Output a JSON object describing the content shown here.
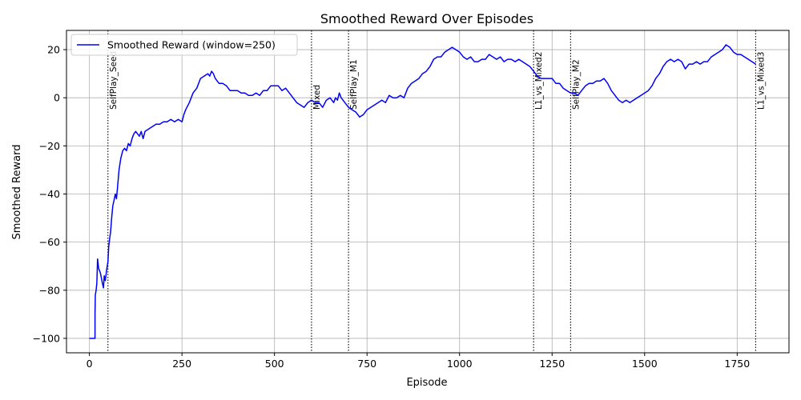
{
  "chart_data": {
    "type": "line",
    "title": "Smoothed Reward Over Episodes",
    "xlabel": "Episode",
    "ylabel": "Smoothed Reward",
    "xlim": [
      -62,
      1890
    ],
    "ylim": [
      -106,
      28
    ],
    "xticks": [
      0,
      250,
      500,
      750,
      1000,
      1250,
      1500,
      1750
    ],
    "yticks": [
      -100,
      -80,
      -60,
      -40,
      -20,
      0,
      20
    ],
    "xtick_labels": [
      "0",
      "250",
      "500",
      "750",
      "1000",
      "1250",
      "1500",
      "1750"
    ],
    "ytick_labels": [
      "−100",
      "−80",
      "−60",
      "−40",
      "−20",
      "0",
      "20"
    ],
    "grid": true,
    "legend_position": "top-left",
    "series": [
      {
        "name": "Smoothed Reward (window=250)",
        "color": "#0000ff",
        "points": [
          [
            0,
            -100
          ],
          [
            15,
            -100
          ],
          [
            15,
            -90
          ],
          [
            16,
            -82
          ],
          [
            18,
            -80
          ],
          [
            20,
            -77
          ],
          [
            22,
            -67
          ],
          [
            25,
            -71
          ],
          [
            30,
            -73
          ],
          [
            35,
            -77
          ],
          [
            38,
            -79
          ],
          [
            40,
            -74
          ],
          [
            43,
            -76
          ],
          [
            46,
            -72
          ],
          [
            50,
            -68
          ],
          [
            52,
            -62
          ],
          [
            55,
            -58
          ],
          [
            57,
            -56
          ],
          [
            60,
            -50
          ],
          [
            63,
            -45
          ],
          [
            66,
            -43
          ],
          [
            70,
            -40
          ],
          [
            73,
            -42
          ],
          [
            76,
            -37
          ],
          [
            80,
            -30
          ],
          [
            85,
            -25
          ],
          [
            90,
            -22
          ],
          [
            95,
            -21
          ],
          [
            100,
            -22
          ],
          [
            105,
            -19
          ],
          [
            110,
            -20
          ],
          [
            115,
            -17
          ],
          [
            120,
            -15
          ],
          [
            125,
            -14
          ],
          [
            130,
            -15
          ],
          [
            135,
            -16
          ],
          [
            140,
            -14
          ],
          [
            145,
            -17
          ],
          [
            150,
            -14
          ],
          [
            160,
            -13
          ],
          [
            170,
            -12
          ],
          [
            180,
            -11
          ],
          [
            190,
            -11
          ],
          [
            200,
            -10
          ],
          [
            210,
            -10
          ],
          [
            220,
            -9
          ],
          [
            230,
            -10
          ],
          [
            240,
            -9
          ],
          [
            250,
            -10
          ],
          [
            255,
            -7
          ],
          [
            260,
            -5
          ],
          [
            270,
            -2
          ],
          [
            280,
            2
          ],
          [
            290,
            4
          ],
          [
            300,
            8
          ],
          [
            310,
            9
          ],
          [
            320,
            10
          ],
          [
            325,
            9
          ],
          [
            330,
            11
          ],
          [
            335,
            10
          ],
          [
            340,
            8
          ],
          [
            345,
            7
          ],
          [
            350,
            6
          ],
          [
            360,
            6
          ],
          [
            370,
            5
          ],
          [
            380,
            3
          ],
          [
            390,
            3
          ],
          [
            400,
            3
          ],
          [
            410,
            2
          ],
          [
            420,
            2
          ],
          [
            430,
            1
          ],
          [
            440,
            1
          ],
          [
            450,
            2
          ],
          [
            460,
            1
          ],
          [
            470,
            3
          ],
          [
            480,
            3
          ],
          [
            490,
            5
          ],
          [
            500,
            5
          ],
          [
            510,
            5
          ],
          [
            520,
            3
          ],
          [
            530,
            4
          ],
          [
            540,
            2
          ],
          [
            550,
            0
          ],
          [
            560,
            -2
          ],
          [
            570,
            -3
          ],
          [
            580,
            -4
          ],
          [
            590,
            -2
          ],
          [
            600,
            -1
          ],
          [
            610,
            -2
          ],
          [
            620,
            -2
          ],
          [
            630,
            -4
          ],
          [
            640,
            -1
          ],
          [
            650,
            0
          ],
          [
            660,
            -2
          ],
          [
            665,
            0
          ],
          [
            670,
            -1
          ],
          [
            675,
            2
          ],
          [
            680,
            0
          ],
          [
            690,
            -2
          ],
          [
            700,
            -4
          ],
          [
            710,
            -5
          ],
          [
            720,
            -6
          ],
          [
            730,
            -8
          ],
          [
            740,
            -7
          ],
          [
            750,
            -5
          ],
          [
            760,
            -4
          ],
          [
            770,
            -3
          ],
          [
            780,
            -2
          ],
          [
            790,
            -1
          ],
          [
            800,
            -2
          ],
          [
            810,
            1
          ],
          [
            820,
            0
          ],
          [
            830,
            0
          ],
          [
            840,
            1
          ],
          [
            850,
            0
          ],
          [
            860,
            4
          ],
          [
            870,
            6
          ],
          [
            880,
            7
          ],
          [
            890,
            8
          ],
          [
            900,
            10
          ],
          [
            910,
            11
          ],
          [
            920,
            13
          ],
          [
            930,
            16
          ],
          [
            940,
            17
          ],
          [
            950,
            17
          ],
          [
            960,
            19
          ],
          [
            970,
            20
          ],
          [
            980,
            21
          ],
          [
            990,
            20
          ],
          [
            1000,
            19
          ],
          [
            1010,
            17
          ],
          [
            1020,
            16
          ],
          [
            1030,
            17
          ],
          [
            1040,
            15
          ],
          [
            1050,
            15
          ],
          [
            1060,
            16
          ],
          [
            1070,
            16
          ],
          [
            1080,
            18
          ],
          [
            1090,
            17
          ],
          [
            1100,
            16
          ],
          [
            1110,
            17
          ],
          [
            1120,
            15
          ],
          [
            1130,
            16
          ],
          [
            1140,
            16
          ],
          [
            1150,
            15
          ],
          [
            1160,
            16
          ],
          [
            1170,
            15
          ],
          [
            1180,
            14
          ],
          [
            1190,
            13
          ],
          [
            1200,
            11
          ],
          [
            1210,
            9
          ],
          [
            1220,
            8
          ],
          [
            1230,
            8
          ],
          [
            1240,
            8
          ],
          [
            1250,
            8
          ],
          [
            1260,
            6
          ],
          [
            1270,
            6
          ],
          [
            1280,
            4
          ],
          [
            1290,
            3
          ],
          [
            1300,
            2
          ],
          [
            1310,
            2
          ],
          [
            1320,
            1
          ],
          [
            1330,
            3
          ],
          [
            1340,
            5
          ],
          [
            1350,
            6
          ],
          [
            1360,
            6
          ],
          [
            1370,
            7
          ],
          [
            1380,
            7
          ],
          [
            1390,
            8
          ],
          [
            1400,
            6
          ],
          [
            1410,
            3
          ],
          [
            1420,
            1
          ],
          [
            1430,
            -1
          ],
          [
            1440,
            -2
          ],
          [
            1450,
            -1
          ],
          [
            1460,
            -2
          ],
          [
            1470,
            -1
          ],
          [
            1480,
            0
          ],
          [
            1490,
            1
          ],
          [
            1500,
            2
          ],
          [
            1510,
            3
          ],
          [
            1520,
            5
          ],
          [
            1530,
            8
          ],
          [
            1540,
            10
          ],
          [
            1550,
            13
          ],
          [
            1560,
            15
          ],
          [
            1570,
            16
          ],
          [
            1580,
            15
          ],
          [
            1590,
            16
          ],
          [
            1600,
            15
          ],
          [
            1610,
            12
          ],
          [
            1620,
            14
          ],
          [
            1630,
            14
          ],
          [
            1640,
            15
          ],
          [
            1650,
            14
          ],
          [
            1660,
            15
          ],
          [
            1670,
            15
          ],
          [
            1680,
            17
          ],
          [
            1690,
            18
          ],
          [
            1700,
            19
          ],
          [
            1710,
            20
          ],
          [
            1720,
            22
          ],
          [
            1730,
            21
          ],
          [
            1740,
            19
          ],
          [
            1750,
            18
          ],
          [
            1760,
            18
          ],
          [
            1770,
            17
          ],
          [
            1780,
            16
          ],
          [
            1790,
            15
          ],
          [
            1800,
            14
          ]
        ]
      }
    ],
    "phase_markers": [
      {
        "x": 50,
        "label": "SelfPlay_Seed"
      },
      {
        "x": 600,
        "label": "Mixed"
      },
      {
        "x": 700,
        "label": "SelfPlay_M1"
      },
      {
        "x": 1200,
        "label": "L1_vs_Mixed2"
      },
      {
        "x": 1300,
        "label": "SelfPlay_M2"
      },
      {
        "x": 1800,
        "label": "L1_vs_Mixed3"
      }
    ]
  }
}
